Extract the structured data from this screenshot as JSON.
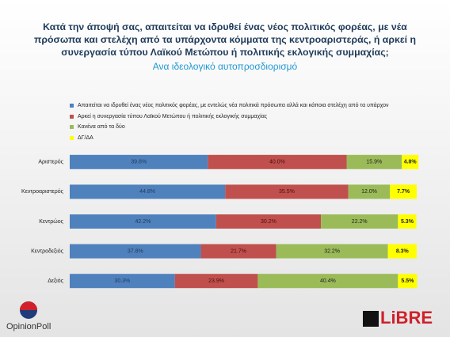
{
  "chart_data": {
    "type": "stacked_barh",
    "title": "Κατά την άποψή σας, απαιτείται να ιδρυθεί ένας νέος πολιτικός φορέας, με νέα πρόσωπα και στελέχη από τα υπάρχοντα κόμματα της κεντροαριστεράς, ή αρκεί η συνεργασία τύπου  Λαϊκού  Μετώπου ή πολιτικής εκλογικής συμμαχίας;",
    "subtitle": "Ανα ιδεολογικό αυτοπροσδιορισμό",
    "categories": [
      "Αριστερός",
      "Κεντροαριστερός",
      "Κεντρώος",
      "Κεντροδεξιός",
      "Δεξιός"
    ],
    "xlim": [
      0,
      100
    ],
    "series": [
      {
        "name": "Απαιτείται να ιδρυθεί ένας νέος πολιτικός φορέας, με εντελώς νέα πολιτικά πρόσωπα αλλά και κάποια στελέχη από τα υπάρχον",
        "color": "#4f81bd",
        "values": [
          39.8,
          44.8,
          42.2,
          37.8,
          30.3
        ],
        "value_labels": [
          "39.8%",
          "44.8%",
          "42.2%",
          "37.8%",
          "30.3%"
        ]
      },
      {
        "name": "Αρκεί η συνεργασία τύπου  Λαϊκού Μετώπου ή πολιτικής εκλογικής συμμαχίας",
        "color": "#c0504d",
        "values": [
          40.0,
          35.5,
          30.2,
          21.7,
          23.9
        ],
        "value_labels": [
          "40.0%",
          "35.5%",
          "30.2%",
          "21.7%",
          "23.9%"
        ]
      },
      {
        "name": "Κανένα από τα δύο",
        "color": "#9bbb59",
        "values": [
          15.9,
          12.0,
          22.2,
          32.2,
          40.4
        ],
        "value_labels": [
          "15.9%",
          "12.0%",
          "22.2%",
          "32.2%",
          "40.4%"
        ]
      },
      {
        "name": "ΔΓ/ΔΑ",
        "color": "#ffff00",
        "values": [
          4.8,
          7.7,
          5.3,
          8.3,
          5.5
        ],
        "value_labels": [
          "4.8%",
          "7.7%",
          "5.3%",
          "8.3%",
          "5.5%"
        ]
      }
    ]
  },
  "logos": {
    "left": "OpinionPoll",
    "right": "LiBRE"
  }
}
